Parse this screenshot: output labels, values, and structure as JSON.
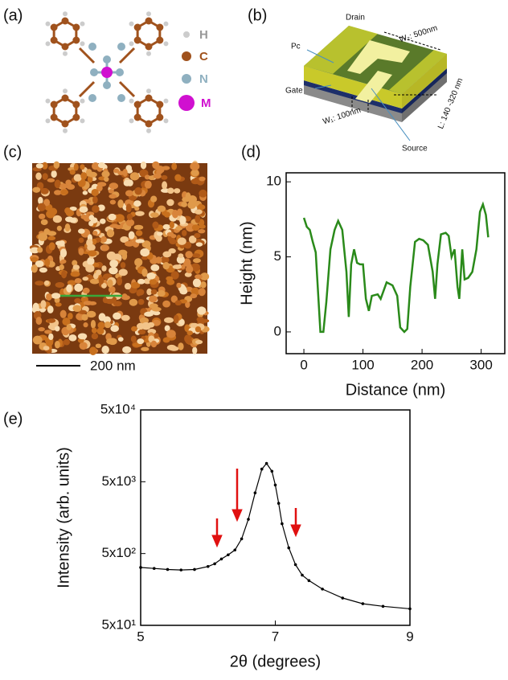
{
  "panel_labels": [
    "(a)",
    "(b)",
    "(c)",
    "(d)",
    "(e)"
  ],
  "molecule_legend": [
    "H",
    "C",
    "N",
    "M"
  ],
  "device_labels": [
    "Drain",
    "W₂: 500nm",
    "Pc",
    "Gate",
    "L: 140 -320 nm",
    "W₁: 100nm",
    "Source"
  ],
  "afm_scale": "200 nm",
  "chart_data": [
    {
      "type": "line",
      "x_label": "Distance  (nm)",
      "y_label": "Height (nm)",
      "xlim": [
        -30,
        340
      ],
      "ylim": [
        -1.45,
        10.6
      ],
      "xticks": [
        0,
        100,
        200,
        300
      ],
      "yticks": [
        0,
        5,
        10
      ],
      "markers": false,
      "series": [
        {
          "color": "#2a8a1a",
          "x": [
            0,
            5,
            10,
            15,
            20,
            25,
            28,
            33,
            38,
            45,
            52,
            58,
            65,
            72,
            76,
            80,
            85,
            90,
            95,
            100,
            105,
            110,
            115,
            125,
            130,
            140,
            150,
            158,
            163,
            170,
            175,
            180,
            188,
            195,
            202,
            210,
            218,
            222,
            226,
            232,
            240,
            245,
            250,
            255,
            260,
            263,
            268,
            272,
            278,
            285,
            292,
            298,
            303,
            308,
            312
          ],
          "values": [
            7.6,
            7,
            6.8,
            6,
            5.3,
            2,
            0,
            0,
            2,
            5.5,
            6.8,
            7.4,
            6.8,
            4,
            1,
            4.5,
            5.5,
            4.6,
            4.5,
            4.5,
            2.2,
            1.4,
            2.4,
            2.5,
            2.2,
            3.3,
            3.1,
            2.4,
            0.3,
            0,
            0.2,
            3,
            6,
            6.2,
            6.1,
            5.8,
            4,
            2.2,
            4.5,
            6.5,
            6.6,
            6.4,
            5,
            5.5,
            3,
            2.2,
            5.5,
            3.5,
            3.6,
            4,
            5.5,
            8,
            8.5,
            7.8,
            6.3
          ]
        }
      ]
    },
    {
      "type": "line",
      "x_label": "2θ (degrees)",
      "y_label": "Intensity (arb. units)",
      "y_log": true,
      "xlim": [
        5,
        9
      ],
      "ylim": [
        50,
        50000
      ],
      "xticks": [
        5,
        7,
        9
      ],
      "yticks": [
        {
          "value": 50,
          "label": "5x10¹"
        },
        {
          "value": 500,
          "label": "5x10²"
        },
        {
          "value": 5000,
          "label": "5x10³"
        },
        {
          "value": 50000,
          "label": "5x10⁴"
        }
      ],
      "markers": true,
      "series": [
        {
          "color": "#000000",
          "x": [
            5.0,
            5.2,
            5.4,
            5.6,
            5.8,
            6.0,
            6.1,
            6.2,
            6.3,
            6.4,
            6.5,
            6.6,
            6.7,
            6.8,
            6.87,
            6.95,
            7.0,
            7.05,
            7.1,
            7.2,
            7.3,
            7.4,
            7.5,
            7.7,
            8.0,
            8.3,
            8.6,
            9.0
          ],
          "values": [
            320,
            310,
            300,
            295,
            300,
            330,
            360,
            420,
            480,
            560,
            800,
            1500,
            3500,
            7500,
            9000,
            7000,
            4500,
            2500,
            1300,
            600,
            350,
            250,
            210,
            160,
            120,
            100,
            92,
            85
          ]
        }
      ]
    }
  ]
}
